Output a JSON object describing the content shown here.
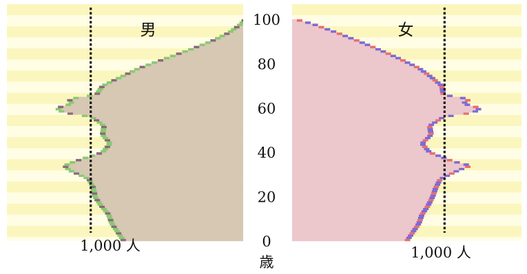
{
  "chart_data": {
    "type": "bar",
    "title": "",
    "xlabel": "",
    "ylabel": "歳",
    "panels": [
      {
        "label": "男",
        "reference_label": "1,000 人",
        "reference_value": 1000
      },
      {
        "label": "女",
        "reference_label": "1,000 人",
        "reference_value": 1000
      }
    ],
    "age_axis": {
      "min": 0,
      "max": 100,
      "ticks": [
        "0",
        "20",
        "40",
        "60",
        "80",
        "100"
      ],
      "unit": "歳"
    },
    "value_axis": {
      "min": 0,
      "max": 1500
    },
    "series": [
      {
        "name": "男",
        "ages": [
          0,
          4,
          8,
          12,
          16,
          20,
          24,
          28,
          32,
          34,
          36,
          40,
          44,
          48,
          52,
          56,
          58,
          60,
          62,
          64,
          66,
          70,
          74,
          78,
          82,
          86,
          90,
          94,
          98,
          100
        ],
        "values": [
          800,
          840,
          880,
          900,
          950,
          990,
          1000,
          1030,
          1160,
          1190,
          1120,
          940,
          890,
          940,
          930,
          1010,
          1200,
          1240,
          1140,
          1160,
          980,
          940,
          820,
          700,
          540,
          380,
          230,
          110,
          30,
          5
        ]
      },
      {
        "name": "女",
        "ages": [
          0,
          4,
          8,
          12,
          16,
          20,
          24,
          28,
          32,
          34,
          36,
          40,
          44,
          48,
          52,
          56,
          58,
          60,
          62,
          64,
          66,
          70,
          74,
          78,
          82,
          86,
          90,
          94,
          98,
          100
        ],
        "values": [
          770,
          810,
          850,
          870,
          910,
          940,
          960,
          990,
          1110,
          1190,
          1070,
          920,
          870,
          930,
          920,
          1010,
          1210,
          1250,
          1140,
          1180,
          1010,
          1000,
          930,
          850,
          730,
          600,
          460,
          310,
          150,
          40
        ]
      }
    ],
    "colors": {
      "male_fill": "#d6c8b2",
      "male_edge": "#6fc85a",
      "male_dark": "#6e4a68",
      "female_fill": "#ecc7cc",
      "female_edge": "#5a4ad6",
      "female_red": "#e8504a",
      "band_light": "#fffde4",
      "band_dark": "#fbf6bd"
    },
    "legend": "none",
    "grid": false
  }
}
